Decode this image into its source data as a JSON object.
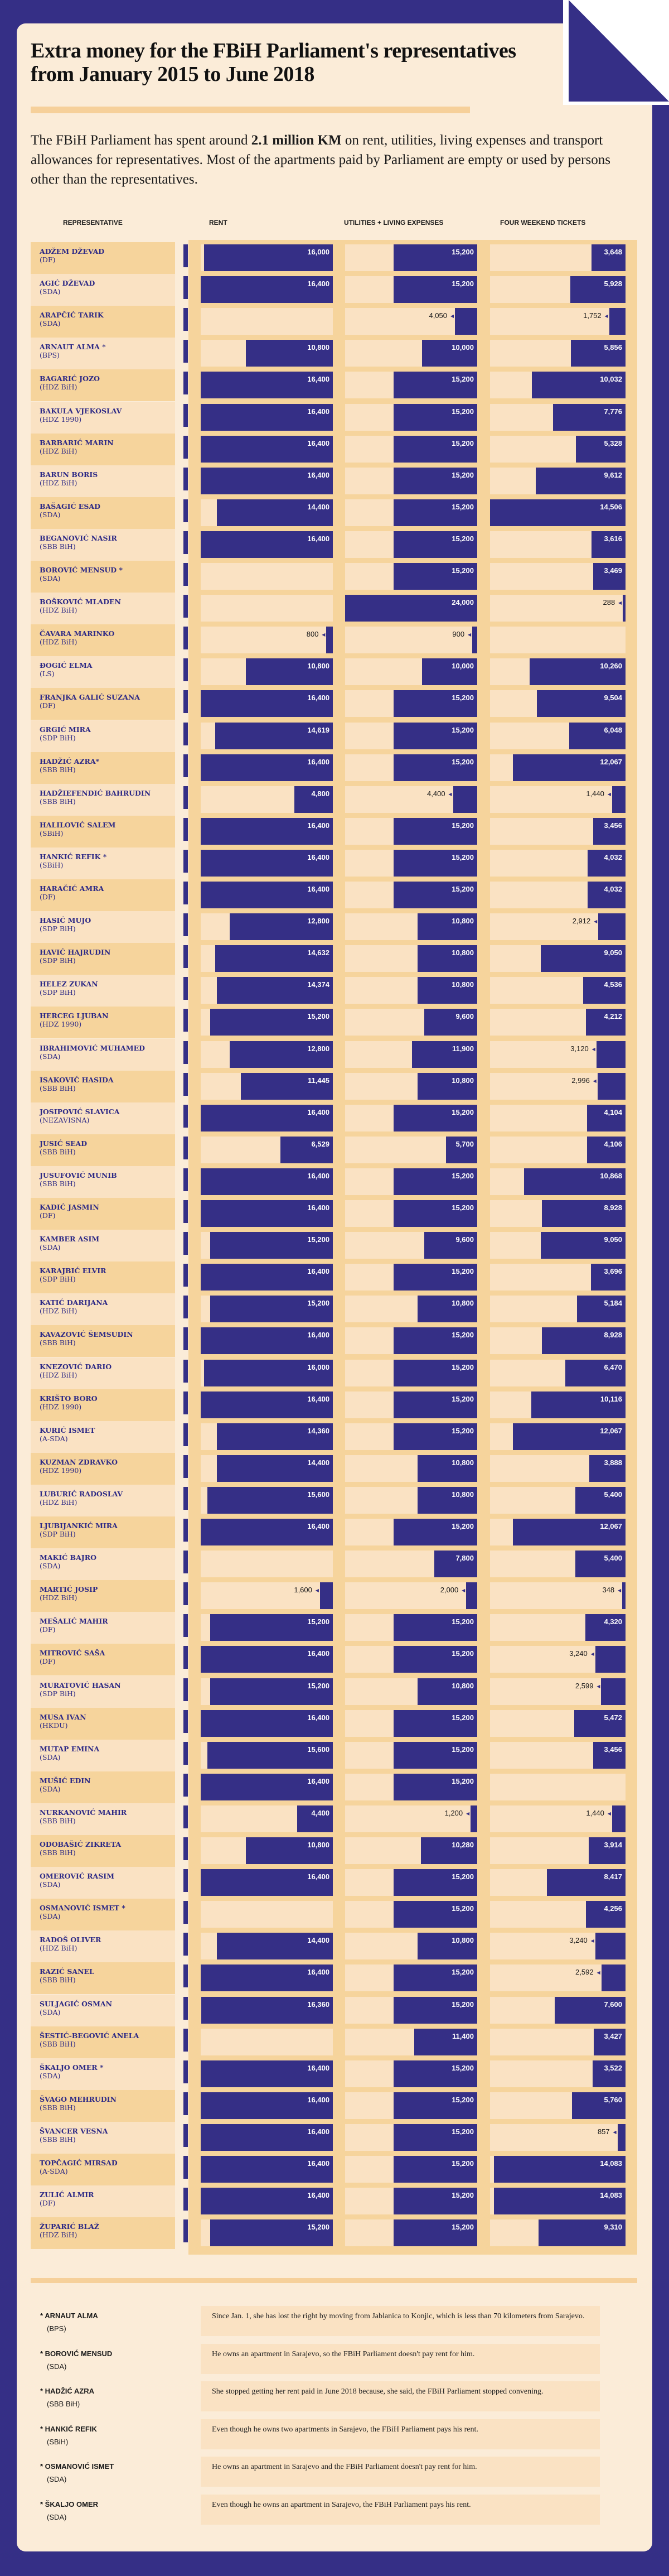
{
  "header": {
    "title": "Extra money for the FBiH Parliament's representatives from January 2015 to June 2018",
    "intro_before": "The FBiH Parliament has spent around ",
    "intro_bold": "2.1 million KM",
    "intro_after": " on rent, utilities, living expenses and transport allowances for representatives. Most of the apartments paid by Parliament are empty or used by persons other than the representatives."
  },
  "colors": {
    "navy": "#352f86",
    "cream": "#fbecd8",
    "row_dark": "#f6d49c",
    "row_light": "#fae2c3"
  },
  "chart_data": {
    "type": "bar",
    "orientation": "horizontal",
    "column_headers": {
      "representative": "REPRESENTATIVE",
      "rent": "RENT",
      "utilities": "UTILITIES + LIVING EXPENSES",
      "tickets": "FOUR WEEKEND TICKETS"
    },
    "categories": [
      "ADŽEM DŽEVAD",
      "AGIĆ DŽEVAD",
      "ARAPČIĆ TARIK",
      "ARNAUT ALMA *",
      "BAGARIĆ JOZO",
      "BAKULA VJEKOSLAV",
      "BARBARIĆ MARIN",
      "BARUN BORIS",
      "BAŠAGIĆ ESAD",
      "BEGANOVIĆ NASIR",
      "BOROVIĆ MENSUD *",
      "BOŠKOVIĆ MLADEN",
      "ČAVARA MARINKO",
      "ĐOGIĆ ELMA",
      "FRANJKA GALIĆ SUZANA",
      "GRGIĆ MIRA",
      "HADŽIĆ AZRA*",
      "HADŽIEFENDIĆ BAHRUDIN",
      "HALILOVIĆ SALEM",
      "HANKIĆ REFIK *",
      "HARAČIĆ AMRA",
      "HASIĆ MUJO",
      "HAVIĆ HAJRUDIN",
      "HELEZ ZUKAN",
      "HERCEG LJUBAN",
      "IBRAHIMOVIĆ MUHAMED",
      "ISAKOVIĆ HASIDA",
      "JOSIPOVIĆ SLAVICA",
      "JUSIĆ SEAD",
      "JUSUFOVIĆ MUNIB",
      "KADIĆ JASMIN",
      "KAMBER ASIM",
      "KARAJBIĆ ELVIR",
      "KATIĆ DARIJANA",
      "KAVAZOVIĆ ŠEMSUDIN",
      "KNEZOVIĆ DARIO",
      "KRIŠTO BORO",
      "KURIĆ ISMET",
      "KUZMAN ZDRAVKO",
      "LUBURIĆ RADOSLAV",
      "LJUBIJANKIĆ MIRA",
      "MAKIĆ BAJRO",
      "MARTIĆ JOSIP",
      "MEŠALIĆ MAHIR",
      "MITROVIĆ SAŠA",
      "MURATOVIĆ HASAN",
      "MUSA IVAN",
      "MUTAP EMINA",
      "MUŠIĆ EDIN",
      "NURKANOVIĆ MAHIR",
      "ODOBAŠIĆ ZIKRETA",
      "OMEROVIĆ RASIM",
      "OSMANOVIĆ ISMET *",
      "RADOŠ OLIVER",
      "RAZIĆ SANEL",
      "SULJAGIĆ OSMAN",
      "ŠESTIĆ-BEGOVIĆ ANELA",
      "ŠKALJO OMER *",
      "ŠVAGO MEHRUDIN",
      "ŠVANCER VESNA",
      "TOPČAGIĆ MIRSAD",
      "ZULIĆ ALMIR",
      "ŽUPARIĆ BLAŽ"
    ],
    "parties": [
      "(DF)",
      "(SDA)",
      "(SDA)",
      "(BPS)",
      "(HDZ BiH)",
      "(HDZ 1990)",
      "(HDZ BiH)",
      "(HDZ BiH)",
      "(SDA)",
      "(SBB BiH)",
      "(SDA)",
      "(HDZ BiH)",
      "(HDZ BiH)",
      "(LS)",
      "(DF)",
      "(SDP BiH)",
      "(SBB BiH)",
      "(SBB BiH)",
      "(SBiH)",
      "(SBiH)",
      "(DF)",
      "(SDP BiH)",
      "(SDP BiH)",
      "(SDP BiH)",
      "(HDZ 1990)",
      "(SDA)",
      "(SBB BiH)",
      "(NEZAVISNA)",
      "(SBB BiH)",
      "(SBB BiH)",
      "(DF)",
      "(SDA)",
      "(SDP BiH)",
      "(HDZ BiH)",
      "(SBB BiH)",
      "(HDZ BiH)",
      "(HDZ 1990)",
      "(A-SDA)",
      "(HDZ 1990)",
      "(HDZ BiH)",
      "(SDP BiH)",
      "(SDA)",
      "(HDZ BiH)",
      "(DF)",
      "(DF)",
      "(SDP BiH)",
      "(HKDU)",
      "(SDA)",
      "(SDA)",
      "(SBB BiH)",
      "(SBB BiH)",
      "(SDA)",
      "(SDA)",
      "(HDZ BiH)",
      "(SBB BiH)",
      "(SDA)",
      "(SBB BiH)",
      "(SDA)",
      "(SBB BiH)",
      "(SBB BiH)",
      "(A-SDA)",
      "(DF)",
      "(HDZ BiH)"
    ],
    "series": [
      {
        "name": "RENT",
        "values": [
          16000,
          16400,
          null,
          10800,
          16400,
          16400,
          16400,
          16400,
          14400,
          16400,
          null,
          null,
          800,
          10800,
          16400,
          14619,
          16400,
          4800,
          16400,
          16400,
          16400,
          12800,
          14632,
          14374,
          15200,
          12800,
          11445,
          16400,
          6529,
          16400,
          16400,
          15200,
          16400,
          15200,
          16400,
          16000,
          16400,
          14360,
          14400,
          15600,
          16400,
          null,
          1600,
          15200,
          16400,
          15200,
          16400,
          15600,
          16400,
          4400,
          10800,
          16400,
          null,
          14400,
          16400,
          16360,
          null,
          16400,
          16400,
          16400,
          16400,
          16400,
          15200
        ]
      },
      {
        "name": "UTILITIES + LIVING EXPENSES",
        "values": [
          15200,
          15200,
          4050,
          10000,
          15200,
          15200,
          15200,
          15200,
          15200,
          15200,
          15200,
          24000,
          900,
          10000,
          15200,
          15200,
          15200,
          4400,
          15200,
          15200,
          15200,
          10800,
          10800,
          10800,
          9600,
          11900,
          10800,
          15200,
          5700,
          15200,
          15200,
          9600,
          15200,
          10800,
          15200,
          15200,
          15200,
          15200,
          10800,
          10800,
          15200,
          7800,
          2000,
          15200,
          15200,
          10800,
          15200,
          15200,
          15200,
          1200,
          10280,
          15200,
          15200,
          10800,
          15200,
          15200,
          11400,
          15200,
          15200,
          15200,
          15200,
          15200,
          15200
        ]
      },
      {
        "name": "FOUR WEEKEND TICKETS",
        "values": [
          3648,
          5928,
          1752,
          5856,
          10032,
          7776,
          5328,
          9612,
          14506,
          3616,
          3469,
          288,
          null,
          10260,
          9504,
          6048,
          12067,
          1440,
          3456,
          4032,
          4032,
          2912,
          9050,
          4536,
          4212,
          3120,
          2996,
          4104,
          4106,
          10868,
          8928,
          9050,
          3696,
          5184,
          8928,
          6470,
          10116,
          12067,
          3888,
          5400,
          12067,
          5400,
          348,
          4320,
          3240,
          2599,
          5472,
          3456,
          null,
          1440,
          3914,
          8417,
          4256,
          3240,
          2592,
          7600,
          3427,
          3522,
          5760,
          857,
          14083,
          14083,
          9310
        ]
      }
    ]
  },
  "footnotes": [
    {
      "name": "* ARNAUT ALMA",
      "party": "(BPS)",
      "note": "Since Jan. 1, she has lost the right by moving from Jablanica to Konjic, which is less than 70 kilometers from Sarajevo."
    },
    {
      "name": "* BOROVIĆ MENSUD",
      "party": "(SDA)",
      "note": "He owns an apartment in Sarajevo, so the FBiH Parliament doesn't pay rent for him."
    },
    {
      "name": "* HADŽIĆ AZRA",
      "party": "(SBB BiH)",
      "note": "She stopped getting her rent paid in June 2018 because, she said, the FBiH Parliament stopped convening."
    },
    {
      "name": "* HANKIĆ REFIK",
      "party": "(SBiH)",
      "note": "Even though he owns two apartments in Sarajevo, the FBiH Parliament pays his rent."
    },
    {
      "name": "* OSMANOVIĆ ISMET",
      "party": "(SDA)",
      "note": "He owns an apartment in Sarajevo and the FBiH Parliament doesn't pay rent for him."
    },
    {
      "name": "* ŠKALJO OMER",
      "party": "(SDA)",
      "note": "Even though he owns an apartment in Sarajevo, the FBiH Parliament pays his rent."
    }
  ]
}
